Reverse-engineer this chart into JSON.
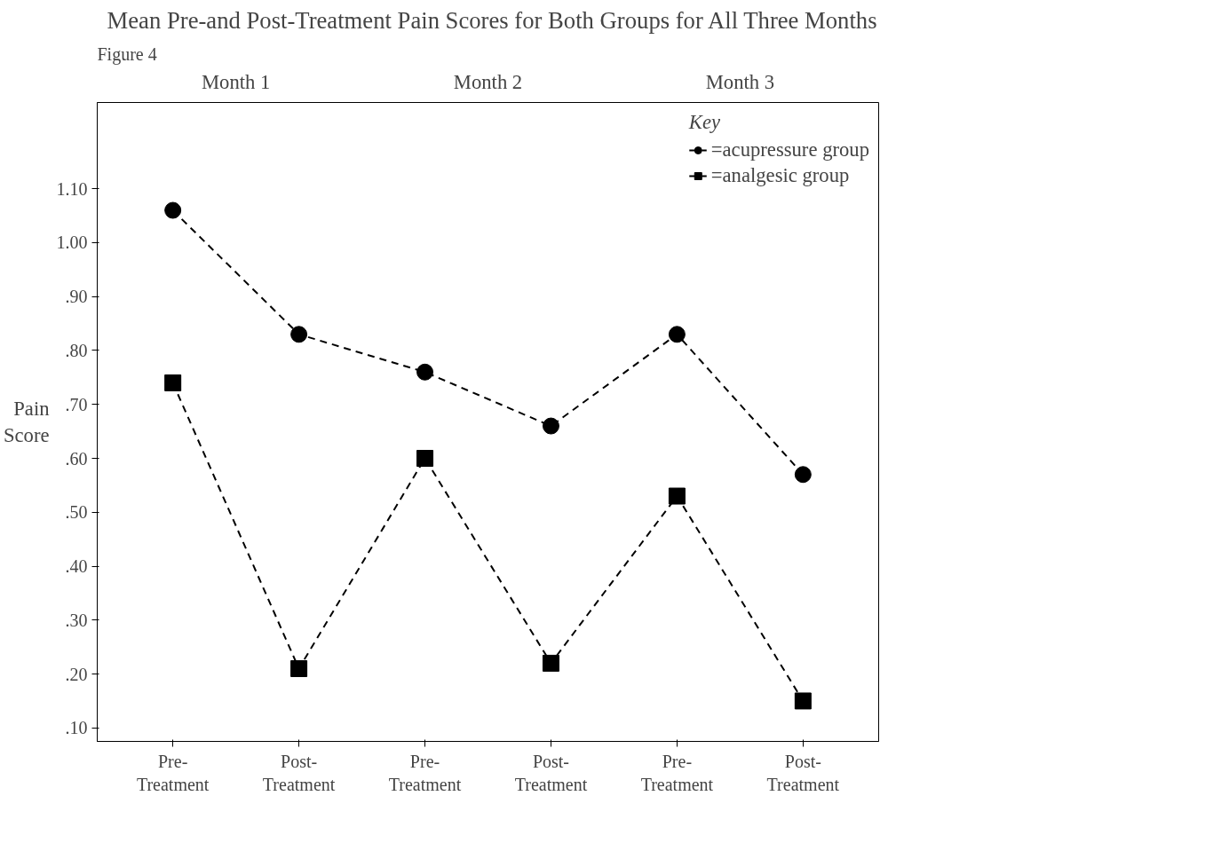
{
  "chart_data": {
    "type": "line",
    "title": "Mean Pre-and Post-Treatment Pain Scores for Both Groups for All Three Months",
    "categories": [
      "Pre-\nTreatment",
      "Post-\nTreatment",
      "Pre-\nTreatment",
      "Post-\nTreatment",
      "Pre-\nTreatment",
      "Post-\nTreatment"
    ],
    "series": [
      {
        "name": "=acupressure group",
        "color": "#000000",
        "marker": "circle",
        "values": [
          1.06,
          0.83,
          0.76,
          0.66,
          0.83,
          0.57
        ]
      },
      {
        "name": "=analgesic group",
        "color": "#000000",
        "marker": "square",
        "values": [
          0.74,
          0.21,
          0.6,
          0.22,
          0.53,
          0.15
        ]
      }
    ],
    "ylabel": "Pain\nScore",
    "legend_title": "Key",
    "legend": "top right",
    "grid": false,
    "line_style": "dashed",
    "ylim": [
      0.075,
      1.26
    ],
    "yticks": [
      {
        "value": 0.1,
        "label": ".10"
      },
      {
        "value": 0.2,
        "label": ".20"
      },
      {
        "value": 0.3,
        "label": ".30"
      },
      {
        "value": 0.4,
        "label": ".40"
      },
      {
        "value": 0.5,
        "label": ".50"
      },
      {
        "value": 0.6,
        "label": ".60"
      },
      {
        "value": 0.7,
        "label": ".70"
      },
      {
        "value": 0.8,
        "label": ".80"
      },
      {
        "value": 0.9,
        "label": ".90"
      },
      {
        "value": 1.0,
        "label": "1.00"
      },
      {
        "value": 1.1,
        "label": "1.10"
      }
    ],
    "annotations": [
      "Figure 4",
      "Month 1",
      "Month 2",
      "Month 3"
    ]
  }
}
